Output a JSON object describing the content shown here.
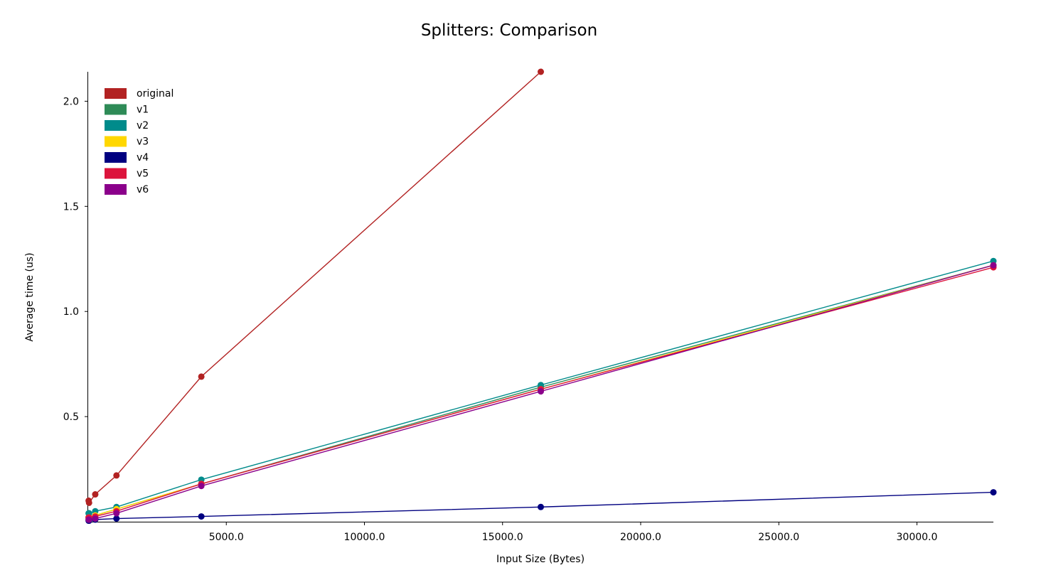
{
  "chart_data": {
    "type": "line",
    "title": "Splitters: Comparison",
    "xlabel": "Input Size (Bytes)",
    "ylabel": "Average time (us)",
    "xlim": [
      0,
      32768
    ],
    "ylim": [
      0,
      2.14
    ],
    "xticks": [
      {
        "value": 5000,
        "label": "5000.0"
      },
      {
        "value": 10000,
        "label": "10000.0"
      },
      {
        "value": 15000,
        "label": "15000.0"
      },
      {
        "value": 20000,
        "label": "20000.0"
      },
      {
        "value": 25000,
        "label": "25000.0"
      },
      {
        "value": 30000,
        "label": "30000.0"
      }
    ],
    "yticks": [
      {
        "value": 0.5,
        "label": "0.5"
      },
      {
        "value": 1.0,
        "label": "1.0"
      },
      {
        "value": 1.5,
        "label": "1.5"
      },
      {
        "value": 2.0,
        "label": "2.0"
      }
    ],
    "legend_position": "upper-left",
    "grid": false,
    "series": [
      {
        "name": "original",
        "color": "#b22222",
        "x": [
          16,
          32,
          256,
          1024,
          4096,
          16384
        ],
        "y": [
          0.1,
          0.09,
          0.13,
          0.22,
          0.69,
          2.14
        ]
      },
      {
        "name": "v1",
        "color": "#2e8b57",
        "x": [
          16,
          32,
          256,
          1024,
          4096,
          16384,
          32768
        ],
        "y": [
          0.02,
          0.02,
          0.03,
          0.06,
          0.18,
          0.64,
          1.22
        ]
      },
      {
        "name": "v2",
        "color": "#008b8b",
        "x": [
          16,
          32,
          256,
          1024,
          4096,
          16384,
          32768
        ],
        "y": [
          0.04,
          0.04,
          0.05,
          0.07,
          0.2,
          0.65,
          1.24
        ]
      },
      {
        "name": "v3",
        "color": "#ffd700",
        "x": [
          16,
          32,
          256,
          1024,
          4096,
          16384,
          32768
        ],
        "y": [
          0.02,
          0.02,
          0.03,
          0.06,
          0.18,
          0.63,
          1.22
        ]
      },
      {
        "name": "v4",
        "color": "#000080",
        "x": [
          16,
          32,
          256,
          1024,
          4096,
          16384,
          32768
        ],
        "y": [
          0.005,
          0.005,
          0.01,
          0.015,
          0.025,
          0.07,
          0.14
        ]
      },
      {
        "name": "v5",
        "color": "#dc143c",
        "x": [
          16,
          32,
          256,
          1024,
          4096,
          16384,
          32768
        ],
        "y": [
          0.02,
          0.02,
          0.025,
          0.05,
          0.18,
          0.63,
          1.21
        ]
      },
      {
        "name": "v6",
        "color": "#8b008b",
        "x": [
          16,
          32,
          256,
          1024,
          4096,
          16384,
          32768
        ],
        "y": [
          0.01,
          0.01,
          0.015,
          0.04,
          0.17,
          0.62,
          1.22
        ]
      }
    ]
  }
}
